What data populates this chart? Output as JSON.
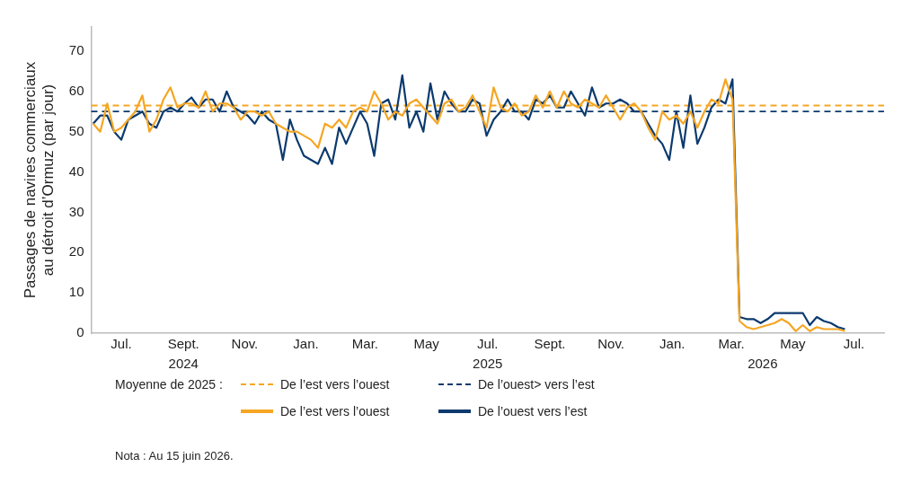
{
  "chart_data": {
    "type": "line",
    "ylabel": "Passages de navires commerciaux au détroit d’Ormuz (par jour)",
    "x": [
      "2024-06-03",
      "2024-06-10",
      "2024-06-17",
      "2024-06-24",
      "2024-07-01",
      "2024-07-08",
      "2024-07-15",
      "2024-07-22",
      "2024-07-29",
      "2024-08-05",
      "2024-08-12",
      "2024-08-19",
      "2024-08-26",
      "2024-09-02",
      "2024-09-09",
      "2024-09-16",
      "2024-09-23",
      "2024-09-30",
      "2024-10-07",
      "2024-10-14",
      "2024-10-21",
      "2024-10-28",
      "2024-11-04",
      "2024-11-11",
      "2024-11-18",
      "2024-11-25",
      "2024-12-02",
      "2024-12-09",
      "2024-12-16",
      "2024-12-23",
      "2024-12-30",
      "2025-01-06",
      "2025-01-13",
      "2025-01-20",
      "2025-01-27",
      "2025-02-03",
      "2025-02-10",
      "2025-02-17",
      "2025-02-24",
      "2025-03-03",
      "2025-03-10",
      "2025-03-17",
      "2025-03-24",
      "2025-03-31",
      "2025-04-07",
      "2025-04-14",
      "2025-04-21",
      "2025-04-28",
      "2025-05-05",
      "2025-05-12",
      "2025-05-19",
      "2025-05-26",
      "2025-06-02",
      "2025-06-09",
      "2025-06-16",
      "2025-06-23",
      "2025-06-30",
      "2025-07-07",
      "2025-07-14",
      "2025-07-21",
      "2025-07-28",
      "2025-08-04",
      "2025-08-11",
      "2025-08-18",
      "2025-08-25",
      "2025-09-01",
      "2025-09-08",
      "2025-09-15",
      "2025-09-22",
      "2025-09-29",
      "2025-10-06",
      "2025-10-13",
      "2025-10-20",
      "2025-10-27",
      "2025-11-03",
      "2025-11-10",
      "2025-11-17",
      "2025-11-24",
      "2025-12-01",
      "2025-12-08",
      "2025-12-15",
      "2025-12-22",
      "2025-12-29",
      "2026-01-05",
      "2026-01-12",
      "2026-01-19",
      "2026-01-26",
      "2026-02-02",
      "2026-02-09",
      "2026-02-16",
      "2026-02-23",
      "2026-03-02",
      "2026-03-09",
      "2026-03-16",
      "2026-03-23",
      "2026-03-30",
      "2026-04-06",
      "2026-04-13",
      "2026-04-20",
      "2026-04-27",
      "2026-05-04",
      "2026-05-11",
      "2026-05-18",
      "2026-05-25",
      "2026-06-01",
      "2026-06-08",
      "2026-06-15",
      "2026-06-22"
    ],
    "series": [
      {
        "name": "De l’est vers l’ouest",
        "color": "#f5a623",
        "values": [
          52,
          50,
          57,
          50,
          51,
          53,
          55,
          59,
          50,
          53,
          58,
          61,
          56,
          57,
          57,
          56,
          60,
          55,
          57,
          57,
          56,
          53,
          55,
          55,
          54,
          55,
          52,
          51,
          50,
          50,
          49,
          48,
          46,
          52,
          51,
          53,
          51,
          55,
          56,
          55,
          60,
          57,
          53,
          55,
          54,
          57,
          58,
          56,
          54,
          52,
          57,
          58,
          55,
          56,
          59,
          55,
          51,
          61,
          56,
          55,
          57,
          54,
          55,
          59,
          56,
          60,
          56,
          60,
          57,
          56,
          58,
          57,
          56,
          59,
          56,
          53,
          56,
          57,
          55,
          51,
          48,
          55,
          53,
          54,
          52,
          55,
          51,
          55,
          58,
          57,
          63,
          58,
          3,
          1.5,
          1,
          1.5,
          2,
          2.5,
          3.5,
          2.5,
          0.5,
          2,
          0.5,
          1.5,
          1,
          1,
          1,
          0.5
        ]
      },
      {
        "name": "De l’ouest vers l’est",
        "color": "#0b3a6e",
        "values": [
          52,
          54,
          54,
          50,
          48,
          53,
          54,
          55,
          52,
          51,
          55,
          56,
          55,
          57,
          58.5,
          56,
          58,
          58,
          55,
          60,
          56,
          55,
          54,
          52,
          55,
          53,
          52,
          43,
          53,
          48,
          44,
          43,
          42,
          46,
          42,
          51,
          47,
          51,
          55,
          52,
          44,
          57,
          58,
          53,
          64,
          51,
          55,
          50,
          62,
          53,
          60,
          57,
          55,
          55,
          58,
          57,
          49,
          53,
          55,
          58,
          55,
          55,
          53,
          58,
          57,
          59,
          56,
          56,
          60,
          57,
          54,
          61,
          56,
          57,
          57,
          58,
          57,
          55,
          55,
          52,
          49,
          47,
          43,
          55,
          46,
          59,
          47,
          51,
          56,
          58,
          57,
          63,
          4,
          3.5,
          3.5,
          2.5,
          3.5,
          5,
          5,
          5,
          5,
          5,
          2,
          4,
          3,
          2.5,
          1.5,
          1
        ]
      }
    ],
    "xlim": [
      "2024-06-01",
      "2026-07-31"
    ],
    "xticks": [
      {
        "value": "2024-07-01",
        "label": "Jul."
      },
      {
        "value": "2024-09-01",
        "label": "Sept."
      },
      {
        "value": "2024-11-01",
        "label": "Nov."
      },
      {
        "value": "2025-01-01",
        "label": "Jan."
      },
      {
        "value": "2025-03-01",
        "label": "Mar."
      },
      {
        "value": "2025-05-01",
        "label": "May"
      },
      {
        "value": "2025-07-01",
        "label": "Jul."
      },
      {
        "value": "2025-09-01",
        "label": "Sept."
      },
      {
        "value": "2025-11-01",
        "label": "Nov."
      },
      {
        "value": "2026-01-01",
        "label": "Jan."
      },
      {
        "value": "2026-03-01",
        "label": "Mar."
      },
      {
        "value": "2026-05-01",
        "label": "May"
      },
      {
        "value": "2026-07-01",
        "label": "Jul."
      }
    ],
    "x2lim": [
      "2024-06-01",
      "2026-07-31"
    ],
    "x2ticks": [
      {
        "value": "2024-09-01",
        "label": "2024"
      },
      {
        "value": "2025-07-01",
        "label": "2025"
      },
      {
        "value": "2026-04-01",
        "label": "2026"
      }
    ],
    "ylim": [
      0,
      76
    ],
    "yticks": [
      0,
      10,
      20,
      30,
      40,
      50,
      60,
      70
    ],
    "ref_lines": [
      {
        "axis": "y",
        "value": 56.5,
        "label": "De l’est vers l’ouest",
        "color": "#f5a623",
        "line_style": "dashed"
      },
      {
        "axis": "y",
        "value": 55,
        "label": "De l’ouest> vers l’est",
        "color": "#0b3a6e",
        "line_style": "dashed"
      }
    ],
    "legend_title": "Moyenne de 2025 :",
    "legend": "bottom",
    "grid": false,
    "marker": "none",
    "line_style": "solid",
    "annotations": [
      "Nota : Au 15 juin 2026."
    ]
  }
}
